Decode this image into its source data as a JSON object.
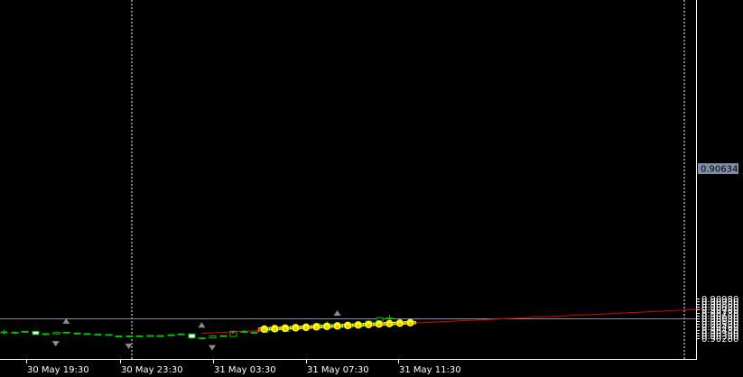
{
  "chart_data": {
    "type": "candlestick",
    "title": "",
    "xlabel": "",
    "ylabel": "",
    "ylim": [
      0.9025,
      0.9099
    ],
    "y_ticks": [
      "0.90980",
      "0.90930",
      "0.90880",
      "0.90830",
      "0.90780",
      "0.90730",
      "0.90680",
      "0.90630",
      "0.90580",
      "0.90530",
      "0.90480",
      "0.90430",
      "0.90380",
      "0.90330",
      "0.90280"
    ],
    "x_ticks": [
      "30 May 19:30",
      "30 May 23:30",
      "31 May 03:30",
      "31 May 07:30",
      "31 May 11:30"
    ],
    "current_price": "0.90634",
    "colors": {
      "background": "#000000",
      "bull_body": "#000000",
      "bear_body": "#ffffff",
      "wick": "#00c000",
      "trend_line": "#e00000",
      "price_line": "#7f8ea6",
      "grid_line": "#ffffff",
      "marker_fill": "#ffff00",
      "marker_frame": "#ffff00"
    },
    "candles": [
      {
        "o": 0.9039,
        "h": 0.9043,
        "l": 0.9035,
        "c": 0.90375
      },
      {
        "o": 0.90375,
        "h": 0.90395,
        "l": 0.9036,
        "c": 0.90385
      },
      {
        "o": 0.90385,
        "h": 0.90405,
        "l": 0.9037,
        "c": 0.904
      },
      {
        "o": 0.904,
        "h": 0.90405,
        "l": 0.9034,
        "c": 0.90345
      },
      {
        "o": 0.90345,
        "h": 0.90365,
        "l": 0.90325,
        "c": 0.9036
      },
      {
        "o": 0.90355,
        "h": 0.90395,
        "l": 0.90345,
        "c": 0.90385
      },
      {
        "o": 0.90385,
        "h": 0.9039,
        "l": 0.9036,
        "c": 0.9037
      },
      {
        "o": 0.9037,
        "h": 0.90375,
        "l": 0.90355,
        "c": 0.9036
      },
      {
        "o": 0.9036,
        "h": 0.90365,
        "l": 0.90345,
        "c": 0.9035
      },
      {
        "o": 0.9035,
        "h": 0.9036,
        "l": 0.9034,
        "c": 0.90345
      },
      {
        "o": 0.90345,
        "h": 0.9035,
        "l": 0.90335,
        "c": 0.9034
      },
      {
        "o": 0.90305,
        "h": 0.9033,
        "l": 0.9029,
        "c": 0.9032
      },
      {
        "o": 0.90315,
        "h": 0.9033,
        "l": 0.9031,
        "c": 0.9032
      },
      {
        "o": 0.90318,
        "h": 0.90328,
        "l": 0.90312,
        "c": 0.90322
      },
      {
        "o": 0.9032,
        "h": 0.9033,
        "l": 0.90315,
        "c": 0.90326
      },
      {
        "o": 0.90325,
        "h": 0.9033,
        "l": 0.90318,
        "c": 0.90322
      },
      {
        "o": 0.9033,
        "h": 0.90345,
        "l": 0.9032,
        "c": 0.9034
      },
      {
        "o": 0.90345,
        "h": 0.90365,
        "l": 0.90335,
        "c": 0.90355
      },
      {
        "o": 0.90355,
        "h": 0.9036,
        "l": 0.9026,
        "c": 0.90285
      },
      {
        "o": 0.90285,
        "h": 0.903,
        "l": 0.9027,
        "c": 0.90285
      },
      {
        "o": 0.90285,
        "h": 0.9033,
        "l": 0.9028,
        "c": 0.90325
      },
      {
        "o": 0.90325,
        "h": 0.9033,
        "l": 0.903,
        "c": 0.9031
      },
      {
        "o": 0.9031,
        "h": 0.9041,
        "l": 0.90305,
        "c": 0.904
      },
      {
        "o": 0.904,
        "h": 0.9042,
        "l": 0.9038,
        "c": 0.90385
      },
      {
        "o": 0.9038,
        "h": 0.90395,
        "l": 0.9037,
        "c": 0.90385
      },
      {
        "o": 0.90385,
        "h": 0.9043,
        "l": 0.90375,
        "c": 0.90425
      },
      {
        "o": 0.90425,
        "h": 0.9044,
        "l": 0.90395,
        "c": 0.90405
      },
      {
        "o": 0.904,
        "h": 0.9044,
        "l": 0.9039,
        "c": 0.9043
      },
      {
        "o": 0.9043,
        "h": 0.9047,
        "l": 0.9042,
        "c": 0.9046
      },
      {
        "o": 0.9046,
        "h": 0.905,
        "l": 0.9045,
        "c": 0.9049
      },
      {
        "o": 0.9049,
        "h": 0.9055,
        "l": 0.9048,
        "c": 0.9053
      },
      {
        "o": 0.9053,
        "h": 0.9057,
        "l": 0.9045,
        "c": 0.9046
      },
      {
        "o": 0.9046,
        "h": 0.9053,
        "l": 0.9045,
        "c": 0.9052
      },
      {
        "o": 0.9048,
        "h": 0.9049,
        "l": 0.9047,
        "c": 0.90473
      },
      {
        "o": 0.90475,
        "h": 0.9056,
        "l": 0.9046,
        "c": 0.90545
      },
      {
        "o": 0.90545,
        "h": 0.9059,
        "l": 0.9054,
        "c": 0.9058
      },
      {
        "o": 0.9058,
        "h": 0.9065,
        "l": 0.9056,
        "c": 0.9064
      },
      {
        "o": 0.90635,
        "h": 0.9069,
        "l": 0.906,
        "c": 0.90632
      }
    ],
    "bar_x0": 4,
    "bar_spacing": 11.55,
    "trend_line": {
      "from": {
        "bar": 19,
        "price": 0.90365
      },
      "to": {
        "bar": 67,
        "price": 0.9079
      }
    },
    "fractal_up": [
      {
        "bar": 6,
        "price": 0.9044
      },
      {
        "bar": 19,
        "price": 0.9037
      },
      {
        "bar": 32,
        "price": 0.9058
      }
    ],
    "fractal_down": [
      {
        "bar": 5,
        "price": 0.90325
      },
      {
        "bar": 12,
        "price": 0.9028
      },
      {
        "bar": 20,
        "price": 0.90255
      }
    ],
    "red_dots": [
      {
        "bar": 22,
        "price": 0.90388
      },
      {
        "bar": 24.5,
        "price": 0.90415
      }
    ],
    "yellow_markers": [
      {
        "bar": 25,
        "price": 0.9044,
        "box": [
          0.90425,
          0.9046
        ]
      },
      {
        "bar": 26,
        "price": 0.90448,
        "box": [
          0.90432,
          0.90468
        ]
      },
      {
        "bar": 27,
        "price": 0.90456,
        "box": [
          0.9044,
          0.90476
        ]
      },
      {
        "bar": 28,
        "price": 0.90464,
        "box": [
          0.90448,
          0.90484
        ]
      },
      {
        "bar": 29,
        "price": 0.90472,
        "box": [
          0.90455,
          0.90492
        ]
      },
      {
        "bar": 30,
        "price": 0.9048,
        "box": [
          0.90462,
          0.905
        ]
      },
      {
        "bar": 31,
        "price": 0.90488,
        "box": [
          0.9047,
          0.90508
        ]
      },
      {
        "bar": 32,
        "price": 0.90496,
        "box": [
          0.90478,
          0.90516
        ]
      },
      {
        "bar": 33,
        "price": 0.90504,
        "box": [
          0.90486,
          0.90524
        ]
      },
      {
        "bar": 34,
        "price": 0.90512,
        "box": [
          0.90494,
          0.90532
        ]
      },
      {
        "bar": 35,
        "price": 0.9052,
        "box": [
          0.90502,
          0.9054
        ]
      },
      {
        "bar": 36,
        "price": 0.90528,
        "box": [
          0.9051,
          0.90548
        ]
      },
      {
        "bar": 37,
        "price": 0.90536,
        "box": [
          0.90518,
          0.90556
        ]
      },
      {
        "bar": 38,
        "price": 0.90544,
        "box": [
          0.90526,
          0.90564
        ]
      },
      {
        "bar": 39,
        "price": 0.90552,
        "box": [
          0.90534,
          0.90572
        ]
      }
    ]
  }
}
